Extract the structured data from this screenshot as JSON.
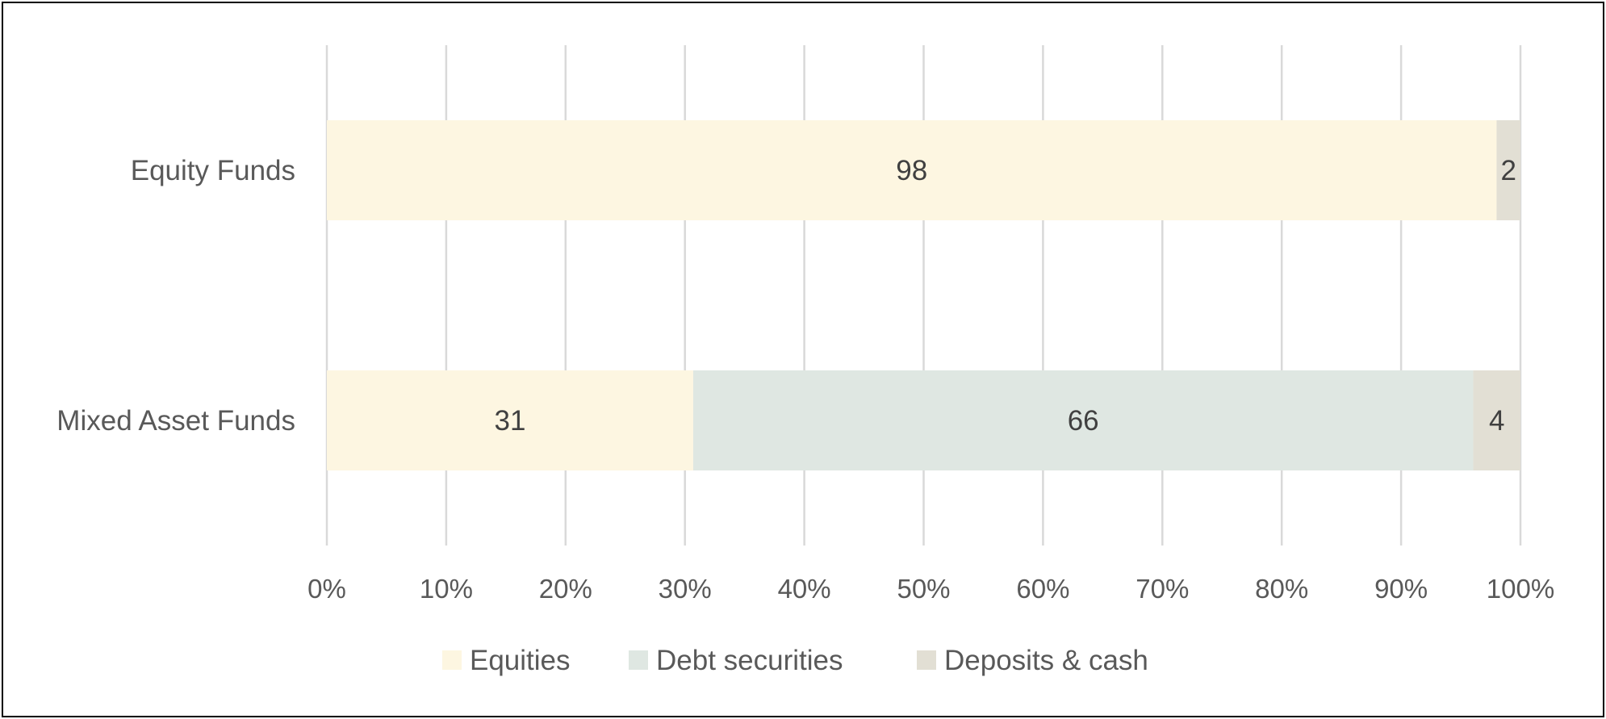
{
  "chart_data": {
    "type": "bar",
    "orientation": "horizontal",
    "stacked": "percent",
    "categories": [
      "Equity Funds",
      "Mixed Asset Funds"
    ],
    "series": [
      {
        "name": "Equities",
        "values": [
          98,
          31
        ],
        "color": "#fdf6e1"
      },
      {
        "name": "Debt securities",
        "values": [
          0,
          66
        ],
        "color": "#dfe7e2"
      },
      {
        "name": "Deposits & cash",
        "values": [
          2,
          4
        ],
        "color": "#e2dfd4"
      }
    ],
    "data_labels": [
      [
        "98",
        "",
        "2"
      ],
      [
        "31",
        "66",
        "4"
      ]
    ],
    "xlim": [
      0,
      100
    ],
    "x_ticks": [
      "0%",
      "10%",
      "20%",
      "30%",
      "40%",
      "50%",
      "60%",
      "70%",
      "80%",
      "90%",
      "100%"
    ],
    "grid": "vertical",
    "legend_position": "bottom",
    "title": "",
    "xlabel": "",
    "ylabel": ""
  }
}
